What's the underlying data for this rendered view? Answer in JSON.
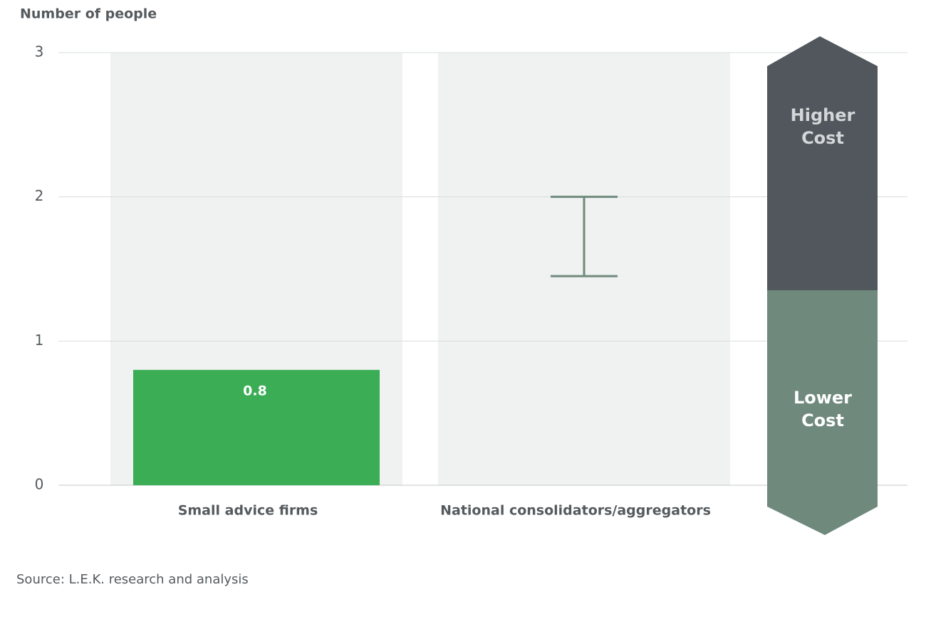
{
  "chart_data": {
    "type": "bar",
    "y_label": "Number of people",
    "categories": [
      "Small advice firms",
      "National consolidators/aggregators"
    ],
    "values": [
      0.8,
      null
    ],
    "ranges": [
      null,
      [
        1.45,
        2
      ]
    ],
    "color": "#3aad55",
    "range_color": "#6f8a7c",
    "ylim": [
      0,
      3
    ],
    "yticks": [
      0,
      1,
      2,
      3
    ],
    "grid": true,
    "annotations": [
      "Higher Cost",
      "Lower Cost"
    ],
    "source": "Source: L.E.K. research and analysis"
  }
}
